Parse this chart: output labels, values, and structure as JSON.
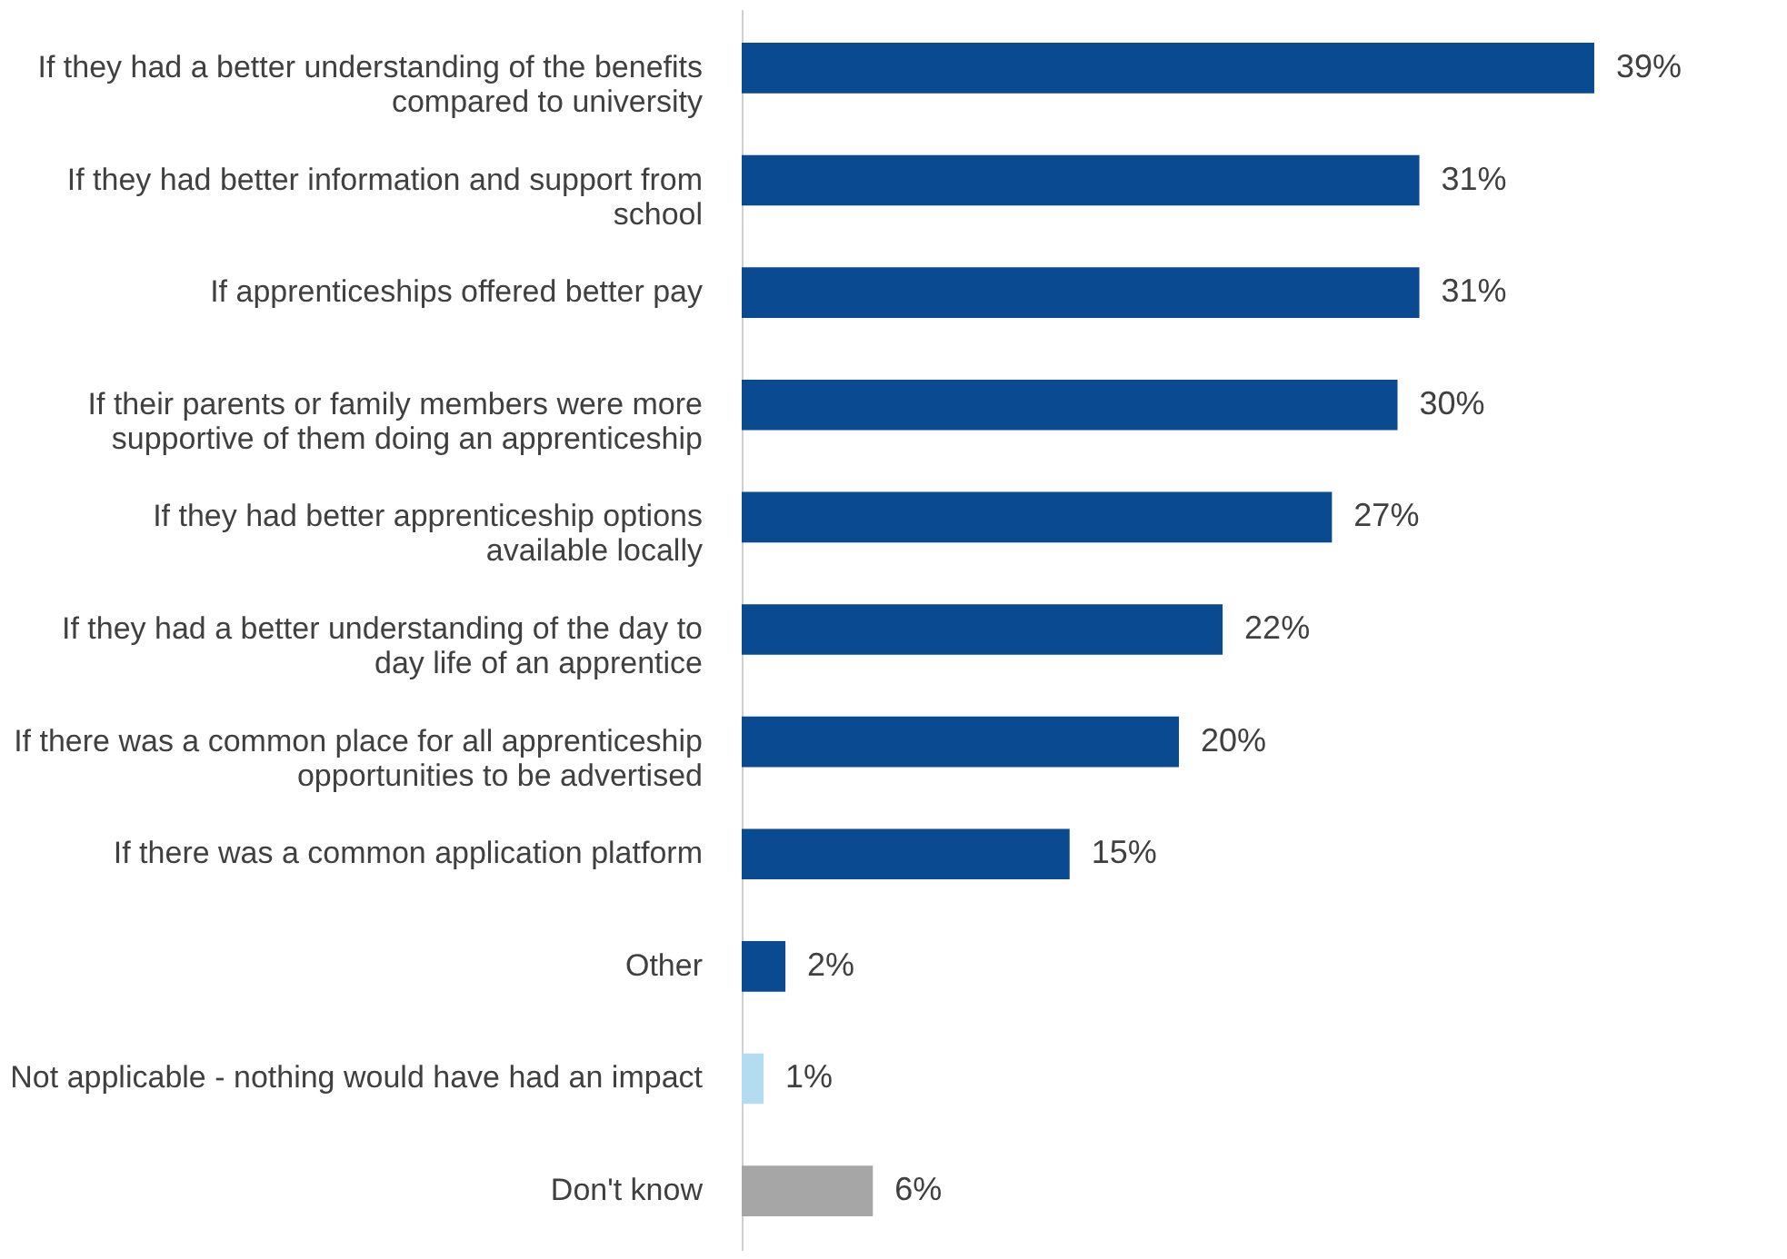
{
  "chart_data": {
    "type": "bar",
    "orientation": "horizontal",
    "categories": [
      "If they had a better understanding of the benefits compared to university",
      "If they had better information and support from school",
      "If apprenticeships offered better pay",
      "If their parents or family members were more supportive of them doing an apprenticeship",
      "If they had better apprenticeship options available locally",
      "If they had a better understanding of the day to day life of an apprentice",
      "If there was a common place for all apprenticeship opportunities to be advertised",
      "If there was a common application platform",
      "Other",
      "Not applicable - nothing would have had an impact",
      "Don't know"
    ],
    "values": [
      39,
      31,
      31,
      30,
      27,
      22,
      20,
      15,
      2,
      1,
      6
    ],
    "value_labels": [
      "39%",
      "31%",
      "31%",
      "30%",
      "27%",
      "22%",
      "20%",
      "15%",
      "2%",
      "1%",
      "6%"
    ],
    "colors": [
      "#0a4a90",
      "#0a4a90",
      "#0a4a90",
      "#0a4a90",
      "#0a4a90",
      "#0a4a90",
      "#0a4a90",
      "#0a4a90",
      "#0a4a90",
      "#b4dcf0",
      "#a6a6a6"
    ]
  }
}
